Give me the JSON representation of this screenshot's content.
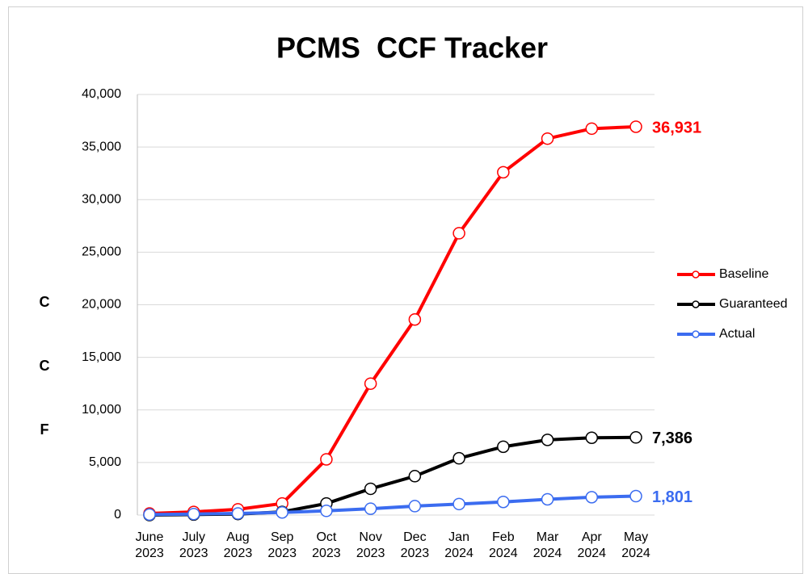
{
  "chart_data": {
    "type": "line",
    "title": "PCMS  CCF Tracker",
    "y_label": "CCF",
    "categories": [
      "June 2023",
      "July 2023",
      "Aug 2023",
      "Sep 2023",
      "Oct 2023",
      "Nov 2023",
      "Dec 2023",
      "Jan 2024",
      "Feb 2024",
      "Mar 2024",
      "Apr 2024",
      "May 2024"
    ],
    "series": [
      {
        "name": "Baseline",
        "color": "#ff0000",
        "values": [
          150,
          300,
          550,
          1100,
          5300,
          12500,
          18600,
          26800,
          32600,
          35800,
          36750,
          36931
        ],
        "value_labels": [
          null,
          null,
          null,
          null,
          null,
          null,
          null,
          null,
          null,
          null,
          null,
          "36,931"
        ]
      },
      {
        "name": "Guaranteed",
        "color": "#000000",
        "values": [
          0,
          50,
          100,
          300,
          1100,
          2500,
          3700,
          5400,
          6500,
          7150,
          7350,
          7386
        ],
        "value_labels": [
          null,
          null,
          null,
          null,
          null,
          null,
          null,
          null,
          null,
          null,
          null,
          "7,386"
        ]
      },
      {
        "name": "Actual",
        "color": "#3b6cf0",
        "values": [
          50,
          100,
          150,
          250,
          400,
          600,
          850,
          1050,
          1250,
          1500,
          1700,
          1801
        ],
        "value_labels": [
          null,
          null,
          null,
          null,
          null,
          null,
          null,
          null,
          null,
          null,
          null,
          "1,801"
        ]
      }
    ],
    "ylim": [
      0,
      40000
    ],
    "yticks": [
      0,
      {
        "value": 5000,
        "label": "5,000"
      },
      {
        "value": 10000,
        "label": "10,000"
      },
      {
        "value": 15000,
        "label": "15,000"
      },
      {
        "value": 20000,
        "label": "20,000"
      },
      {
        "value": 25000,
        "label": "25,000"
      },
      {
        "value": 30000,
        "label": "30,000"
      },
      {
        "value": 35000,
        "label": "35,000"
      },
      {
        "value": 40000,
        "label": "40,000"
      }
    ],
    "grid": true,
    "legend": "right"
  }
}
